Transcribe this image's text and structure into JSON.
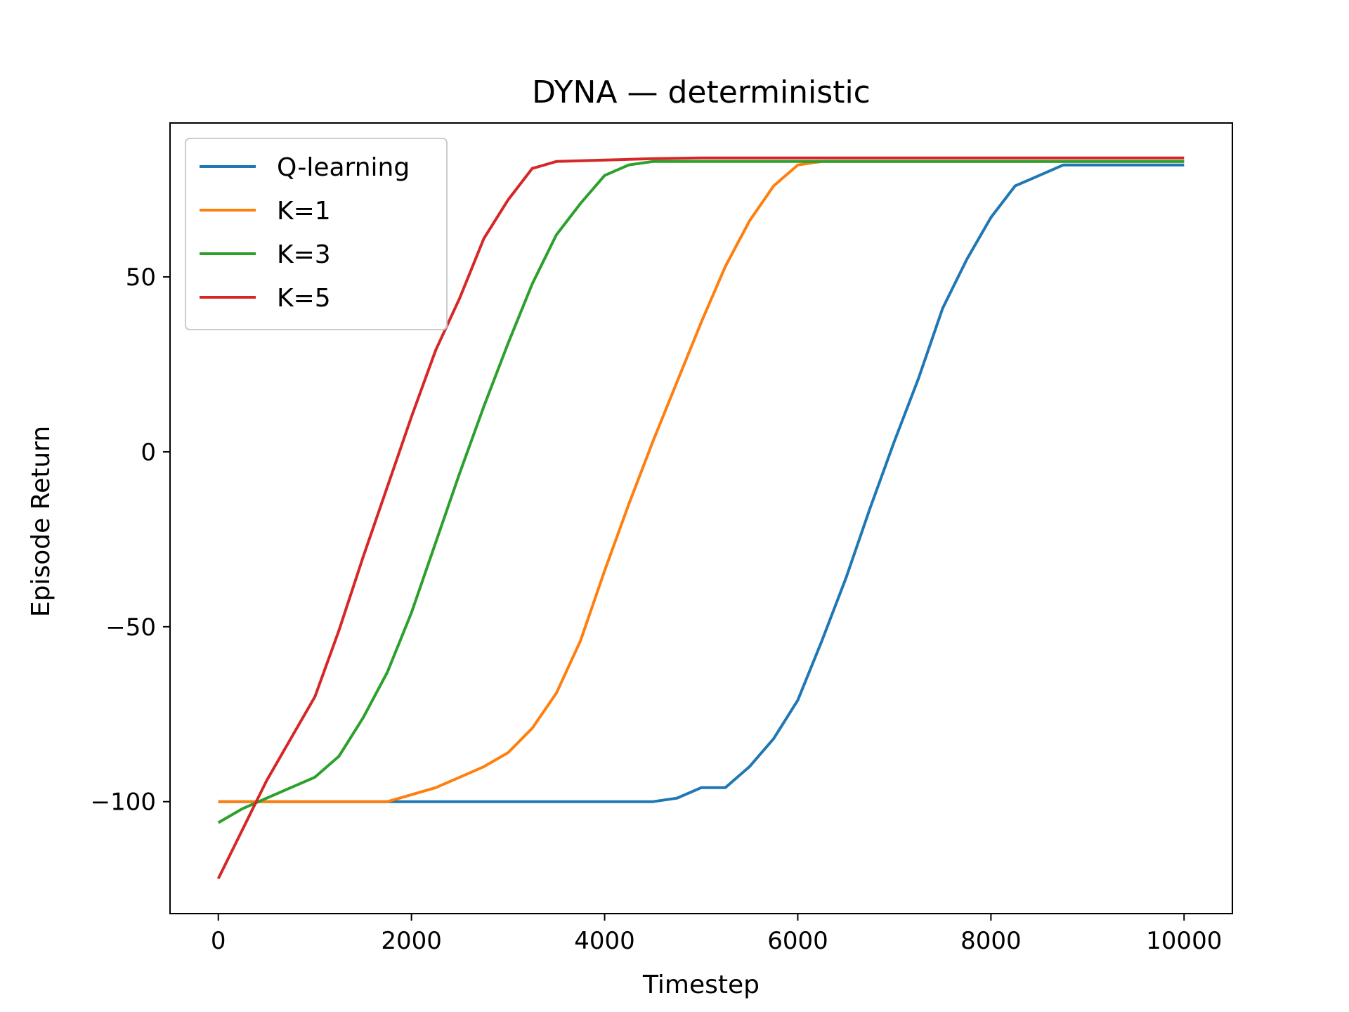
{
  "chart_data": {
    "type": "line",
    "title": "DYNA — deterministic",
    "xlabel": "Timestep",
    "ylabel": "Episode Return",
    "xlim": [
      -500,
      10500
    ],
    "ylim": [
      -132,
      94
    ],
    "xticks": [
      0,
      2000,
      4000,
      6000,
      8000,
      10000
    ],
    "xtick_labels": [
      "0",
      "2000",
      "4000",
      "6000",
      "8000",
      "10000"
    ],
    "yticks": [
      -100,
      -50,
      0,
      50
    ],
    "ytick_labels": [
      "−100",
      "−50",
      "0",
      "50"
    ],
    "grid": false,
    "legend": "top-left",
    "x": [
      0,
      250,
      500,
      750,
      1000,
      1250,
      1500,
      1750,
      2000,
      2250,
      2500,
      2750,
      3000,
      3250,
      3500,
      3750,
      4000,
      4250,
      4500,
      4750,
      5000,
      5250,
      5500,
      5750,
      6000,
      6250,
      6500,
      6750,
      7000,
      7250,
      7500,
      7750,
      8000,
      8250,
      8500,
      8750,
      9000,
      9250,
      9500,
      9750,
      10000
    ],
    "series": [
      {
        "name": "Q-learning",
        "color": "#1f77b4",
        "values": [
          -100,
          -100,
          -100,
          -100,
          -100,
          -100,
          -100,
          -100,
          -100,
          -100,
          -100,
          -100,
          -100,
          -100,
          -100,
          -100,
          -100,
          -100,
          -100,
          -99,
          -96,
          -96,
          -90,
          -82,
          -71,
          -54,
          -36,
          -16,
          3,
          21,
          41,
          55,
          67,
          76,
          79,
          82,
          82,
          82,
          82,
          82,
          82
        ]
      },
      {
        "name": "K=1",
        "color": "#ff7f0e",
        "values": [
          -100,
          -100,
          -100,
          -100,
          -100,
          -100,
          -100,
          -100,
          -98,
          -96,
          -93,
          -90,
          -86,
          -79,
          -69,
          -54,
          -34,
          -15,
          3,
          20,
          37,
          53,
          66,
          76,
          82,
          83,
          83,
          83,
          83,
          83,
          83,
          83,
          83,
          83,
          83,
          83,
          83,
          83,
          83,
          83,
          83
        ]
      },
      {
        "name": "K=3",
        "color": "#2ca02c",
        "values": [
          -106,
          -102,
          -99,
          -96,
          -93,
          -87,
          -76,
          -63,
          -46,
          -26,
          -6,
          13,
          31,
          48,
          62,
          71,
          79,
          82,
          83,
          83,
          83,
          83,
          83,
          83,
          83,
          83,
          83,
          83,
          83,
          83,
          83,
          83,
          83,
          83,
          83,
          83,
          83,
          83,
          83,
          83,
          83
        ]
      },
      {
        "name": "K=5",
        "color": "#d62728",
        "values": [
          -122,
          -108,
          -94,
          -82,
          -70,
          -51,
          -30,
          -10,
          10,
          29,
          44,
          61,
          72,
          81,
          83,
          83.2,
          83.4,
          83.6,
          83.8,
          83.9,
          84,
          84,
          84,
          84,
          84,
          84,
          84,
          84,
          84,
          84,
          84,
          84,
          84,
          84,
          84,
          84,
          84,
          84,
          84,
          84,
          84
        ]
      }
    ]
  }
}
